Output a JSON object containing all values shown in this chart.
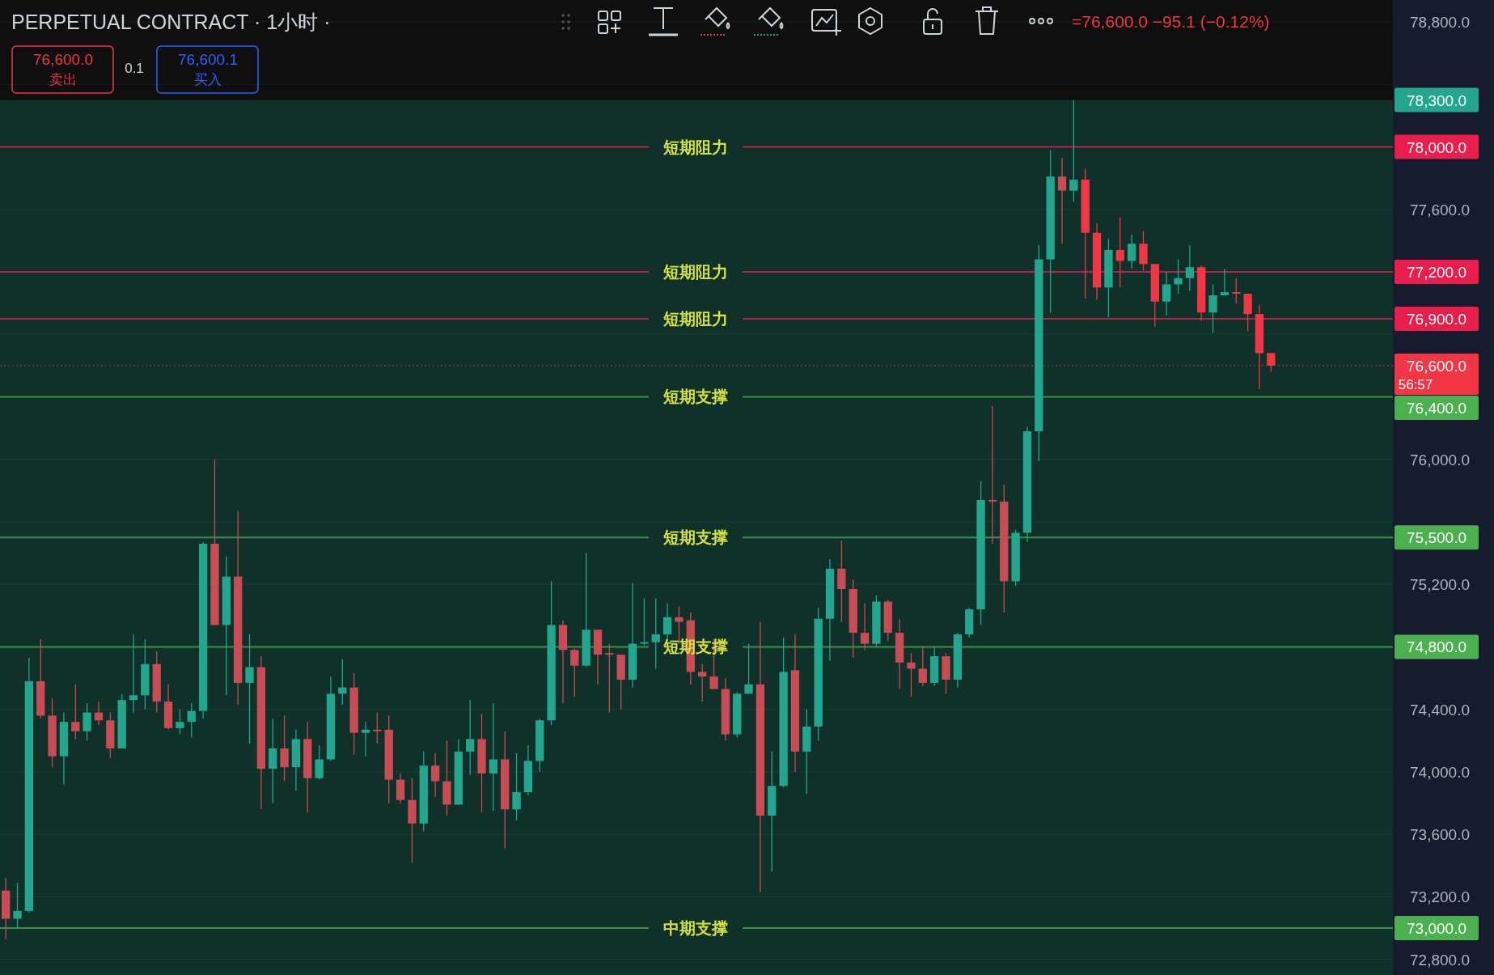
{
  "chart_data": {
    "type": "candlestick",
    "title": "PERPETUAL CONTRACT · 1小时 ·",
    "annotations": [
      "=76,600.0 −95.1 (−0.12%)",
      "76,600.0",
      "卖出",
      "0.1",
      "76,600.1",
      "买入",
      "78,300.0",
      "78,000.0",
      "77,200.0",
      "76,900.0",
      "76,600.0",
      "56:57",
      "76,400.0",
      "75,500.0",
      "74,800.0",
      "73,000.0"
    ],
    "categories": [
      null,
      null,
      null,
      null,
      null,
      null,
      null,
      null,
      null,
      null,
      null,
      null,
      null,
      null,
      null,
      null,
      null,
      null,
      null,
      null,
      null,
      null,
      null,
      null,
      null,
      null,
      null,
      null,
      null,
      null,
      null,
      null,
      null,
      null,
      null,
      null,
      null,
      null,
      null,
      null,
      null,
      null,
      null,
      null,
      null,
      null,
      null,
      null,
      null,
      null,
      null,
      null,
      null,
      null,
      null,
      null,
      null,
      null,
      null,
      null,
      null,
      null,
      null,
      null,
      null,
      null,
      null,
      null,
      null,
      null,
      null,
      null,
      null,
      null,
      null,
      null,
      null,
      null,
      null,
      null,
      null,
      null,
      null,
      null,
      null,
      null,
      null,
      null,
      null,
      null,
      null,
      null,
      null,
      null,
      null,
      null,
      null,
      null,
      null,
      null,
      null,
      null,
      null,
      null,
      null,
      null,
      null,
      null,
      null,
      null,
      null,
      null,
      null,
      null,
      null,
      null,
      null,
      null,
      null,
      null
    ],
    "ohlc": [
      [
        73240,
        73320,
        72930,
        73060
      ],
      [
        73060,
        73290,
        73000,
        73110
      ],
      [
        73110,
        74730,
        73100,
        74580
      ],
      [
        74580,
        74850,
        74340,
        74360
      ],
      [
        74360,
        74470,
        74030,
        74100
      ],
      [
        74100,
        74380,
        73920,
        74320
      ],
      [
        74320,
        74560,
        74210,
        74260
      ],
      [
        74260,
        74440,
        74200,
        74380
      ],
      [
        74380,
        74450,
        74300,
        74330
      ],
      [
        74330,
        74380,
        74090,
        74150
      ],
      [
        74150,
        74500,
        74150,
        74460
      ],
      [
        74460,
        74880,
        74380,
        74490
      ],
      [
        74490,
        74850,
        74400,
        74690
      ],
      [
        74690,
        74770,
        74380,
        74450
      ],
      [
        74450,
        74560,
        74270,
        74280
      ],
      [
        74280,
        74400,
        74240,
        74320
      ],
      [
        74320,
        74440,
        74220,
        74390
      ],
      [
        74390,
        75470,
        74340,
        75460
      ],
      [
        75460,
        76000,
        74940,
        74940
      ],
      [
        74940,
        75380,
        74490,
        75250
      ],
      [
        75250,
        75670,
        74430,
        74570
      ],
      [
        74570,
        74880,
        74180,
        74670
      ],
      [
        74670,
        74740,
        73760,
        74020
      ],
      [
        74020,
        74340,
        73800,
        74150
      ],
      [
        74150,
        74360,
        73940,
        74030
      ],
      [
        74030,
        74270,
        73880,
        74210
      ],
      [
        74210,
        74320,
        73740,
        73960
      ],
      [
        73960,
        74170,
        73950,
        74080
      ],
      [
        74080,
        74610,
        74070,
        74500
      ],
      [
        74500,
        74720,
        74430,
        74540
      ],
      [
        74540,
        74630,
        74110,
        74250
      ],
      [
        74250,
        74320,
        74100,
        74270
      ],
      [
        74270,
        74380,
        74180,
        74260
      ],
      [
        74270,
        74360,
        73800,
        73950
      ],
      [
        73950,
        73990,
        73800,
        73820
      ],
      [
        73820,
        73960,
        73420,
        73670
      ],
      [
        73670,
        74130,
        73620,
        74040
      ],
      [
        74040,
        74120,
        73840,
        73940
      ],
      [
        73940,
        74200,
        73720,
        73790
      ],
      [
        73790,
        74210,
        73790,
        74130
      ],
      [
        74130,
        74460,
        73980,
        74210
      ],
      [
        74210,
        74370,
        73740,
        73990
      ],
      [
        73990,
        74440,
        73750,
        74080
      ],
      [
        74080,
        74260,
        73510,
        73760
      ],
      [
        73760,
        74120,
        73690,
        73870
      ],
      [
        73870,
        74170,
        73850,
        74070
      ],
      [
        74070,
        74340,
        74000,
        74330
      ],
      [
        74330,
        75220,
        74300,
        74940
      ],
      [
        74940,
        74970,
        74440,
        74780
      ],
      [
        74780,
        74790,
        74480,
        74680
      ],
      [
        74680,
        75400,
        74670,
        74910
      ],
      [
        74910,
        74910,
        74560,
        74750
      ],
      [
        74760,
        74820,
        74380,
        74750
      ],
      [
        74750,
        74750,
        74400,
        74590
      ],
      [
        74590,
        75210,
        74540,
        74820
      ],
      [
        74820,
        75110,
        74810,
        74830
      ],
      [
        74830,
        75110,
        74660,
        74880
      ],
      [
        74880,
        75080,
        74840,
        74990
      ],
      [
        74990,
        75060,
        74820,
        74960
      ],
      [
        74970,
        75020,
        74560,
        74640
      ],
      [
        74640,
        74690,
        74450,
        74610
      ],
      [
        74610,
        74850,
        74530,
        74530
      ],
      [
        74530,
        74600,
        74200,
        74240
      ],
      [
        74240,
        74510,
        74220,
        74500
      ],
      [
        74500,
        74820,
        74500,
        74560
      ],
      [
        74560,
        74960,
        73230,
        73720
      ],
      [
        73720,
        74130,
        73360,
        73910
      ],
      [
        73910,
        74860,
        73900,
        74640
      ],
      [
        74650,
        74880,
        74000,
        74130
      ],
      [
        74130,
        74400,
        73860,
        74290
      ],
      [
        74290,
        75050,
        74200,
        74980
      ],
      [
        74980,
        75360,
        74710,
        75300
      ],
      [
        75300,
        75480,
        74960,
        75170
      ],
      [
        75170,
        75230,
        74730,
        74890
      ],
      [
        74890,
        75080,
        74780,
        74820
      ],
      [
        74820,
        75130,
        74800,
        75090
      ],
      [
        75090,
        75100,
        74840,
        74890
      ],
      [
        74890,
        74980,
        74530,
        74700
      ],
      [
        74700,
        74760,
        74480,
        74660
      ],
      [
        74660,
        74800,
        74550,
        74570
      ],
      [
        74570,
        74800,
        74550,
        74740
      ],
      [
        74740,
        74760,
        74500,
        74590
      ],
      [
        74590,
        74890,
        74540,
        74880
      ],
      [
        74880,
        75050,
        74860,
        75040
      ],
      [
        75040,
        75860,
        74940,
        75740
      ],
      [
        75740,
        76340,
        75460,
        75730
      ],
      [
        75730,
        75840,
        75020,
        75220
      ],
      [
        75220,
        75550,
        75190,
        75530
      ],
      [
        75530,
        76210,
        75470,
        76180
      ],
      [
        76180,
        77370,
        75990,
        77280
      ],
      [
        77280,
        77980,
        76940,
        77810
      ],
      [
        77810,
        77930,
        77380,
        77720
      ],
      [
        77720,
        78300,
        77650,
        77790
      ],
      [
        77790,
        77860,
        77030,
        77450
      ],
      [
        77450,
        77510,
        77020,
        77100
      ],
      [
        77100,
        77410,
        76910,
        77340
      ],
      [
        77340,
        77550,
        77100,
        77270
      ],
      [
        77270,
        77440,
        77220,
        77380
      ],
      [
        77380,
        77460,
        77210,
        77250
      ],
      [
        77250,
        77250,
        76850,
        77010
      ],
      [
        77010,
        77200,
        76920,
        77120
      ],
      [
        77120,
        77280,
        77060,
        77160
      ],
      [
        77160,
        77370,
        77080,
        77230
      ],
      [
        77230,
        77240,
        76890,
        76940
      ],
      [
        76940,
        77120,
        76810,
        77050
      ],
      [
        77050,
        77220,
        77050,
        77070
      ],
      [
        77070,
        77160,
        77000,
        77060
      ],
      [
        77060,
        77060,
        76820,
        76930
      ],
      [
        76930,
        76990,
        76450,
        76680
      ],
      [
        76680,
        76680,
        76560,
        76600
      ],
      null,
      null,
      null,
      null,
      null,
      null,
      null,
      null,
      null,
      null
    ],
    "colors": [
      "#c94c55",
      "#22a68e",
      "#22a68e",
      "#c94c55",
      "#c94c55",
      "#22a68e",
      "#c94c55",
      "#22a68e",
      "#c94c55",
      "#c94c55",
      "#22a68e",
      "#22a68e",
      "#22a68e",
      "#c94c55",
      "#c94c55",
      "#22a68e",
      "#22a68e",
      "#22a68e",
      "#c94c55",
      "#22a68e",
      "#c94c55",
      "#22a68e",
      "#c94c55",
      "#22a68e",
      "#c94c55",
      "#22a68e",
      "#c94c55",
      "#22a68e",
      "#22a68e",
      "#22a68e",
      "#c94c55",
      "#22a68e",
      "#c94c55",
      "#c94c55",
      "#c94c55",
      "#c94c55",
      "#22a68e",
      "#c94c55",
      "#c94c55",
      "#22a68e",
      "#22a68e",
      "#c94c55",
      "#22a68e",
      "#c94c55",
      "#22a68e",
      "#22a68e",
      "#22a68e",
      "#22a68e",
      "#c94c55",
      "#c94c55",
      "#22a68e",
      "#c94c55",
      "#c94c55",
      "#c94c55",
      "#22a68e",
      "#22a68e",
      "#22a68e",
      "#22a68e",
      "#c94c55",
      "#c94c55",
      "#c94c55",
      "#c94c55",
      "#c94c55",
      "#22a68e",
      "#22a68e",
      "#c94c55",
      "#22a68e",
      "#22a68e",
      "#c94c55",
      "#22a68e",
      "#22a68e",
      "#22a68e",
      "#c94c55",
      "#c94c55",
      "#c94c55",
      "#22a68e",
      "#c94c55",
      "#c94c55",
      "#c94c55",
      "#c94c55",
      "#22a68e",
      "#c94c55",
      "#22a68e",
      "#22a68e",
      "#22a68e",
      "#c94c55",
      "#c94c55",
      "#22a68e",
      "#22a68e",
      "#22a68e",
      "#22a68e",
      "#c94c55",
      "#22a68e",
      "#f23645",
      "#f23645",
      "#22a68e",
      "#f23645",
      "#22a68e",
      "#f23645",
      "#f23645",
      "#22a68e",
      "#22a68e",
      "#22a68e",
      "#f23645",
      "#22a68e",
      "#22a68e",
      "#f23645",
      "#f23645",
      "#f23645",
      "#f23645",
      null,
      null,
      null,
      null,
      null,
      null,
      null,
      null,
      null,
      null
    ],
    "ylim": [
      72700,
      78940
    ],
    "yticks": [
      {
        "value": 72800,
        "label": "72,800.0"
      },
      {
        "value": 73200,
        "label": "73,200.0"
      },
      {
        "value": 73600,
        "label": "73,600.0"
      },
      {
        "value": 74000,
        "label": "74,000.0"
      },
      {
        "value": 74400,
        "label": "74,400.0"
      },
      {
        "value": 75200,
        "label": "75,200.0"
      },
      {
        "value": 75600,
        "label": null
      },
      {
        "value": 76000,
        "label": "76,000.0"
      },
      {
        "value": 76800,
        "label": null
      },
      {
        "value": 77600,
        "label": "77,600.0"
      },
      {
        "value": 78400,
        "label": null
      },
      {
        "value": 78800,
        "label": "78,800.0"
      }
    ],
    "tick_labels": "y",
    "grid": "y",
    "bands": [
      {
        "axis": "y",
        "from": 72700,
        "to": 78300,
        "color": "#10302a"
      }
    ],
    "ref_lines": [
      {
        "axis": "y",
        "value": 78000,
        "label": "短期阻力",
        "color": "#e91e4c"
      },
      {
        "axis": "y",
        "value": 77200,
        "label": "短期阻力",
        "color": "#e91e4c"
      },
      {
        "axis": "y",
        "value": 76900,
        "label": "短期阻力",
        "color": "#e91e4c"
      },
      {
        "axis": "y",
        "value": 76600,
        "color": "#f23645",
        "line_style": "dotted"
      },
      {
        "axis": "y",
        "value": 76400,
        "label": "短期支撑",
        "color": "#4caf50"
      },
      {
        "axis": "y",
        "value": 75500,
        "label": "短期支撑",
        "color": "#4caf50"
      },
      {
        "axis": "y",
        "value": 74800,
        "label": "短期支撑",
        "color": "#4caf50"
      },
      {
        "axis": "y",
        "value": 73000,
        "label": "中期支撑",
        "color": "#4caf50"
      }
    ]
  }
}
